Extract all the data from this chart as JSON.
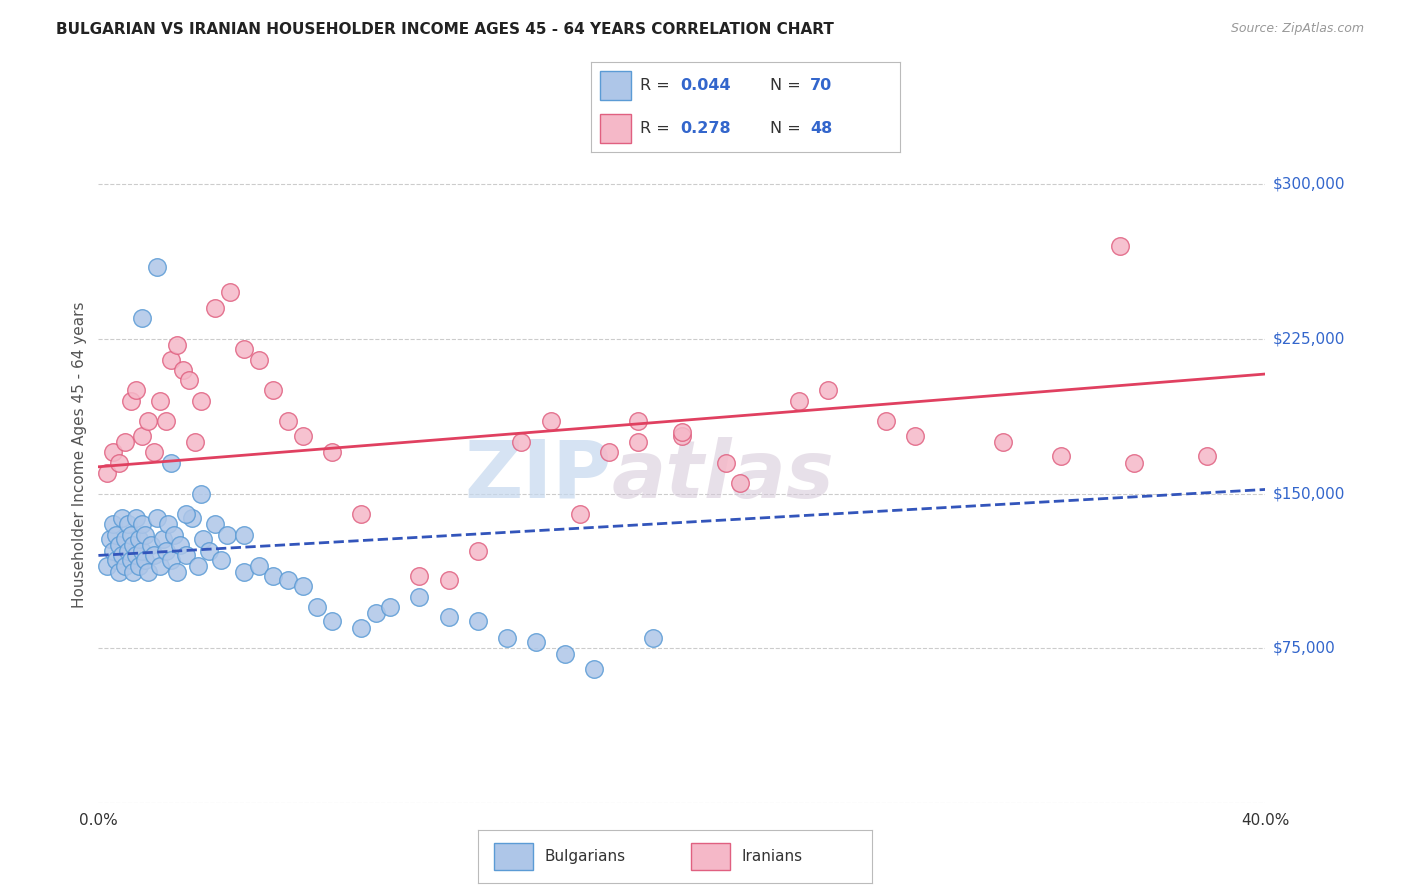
{
  "title": "BULGARIAN VS IRANIAN HOUSEHOLDER INCOME AGES 45 - 64 YEARS CORRELATION CHART",
  "source": "Source: ZipAtlas.com",
  "ylabel": "Householder Income Ages 45 - 64 years",
  "xlim": [
    0.0,
    0.4
  ],
  "ylim": [
    0,
    337500
  ],
  "yticks": [
    0,
    75000,
    150000,
    225000,
    300000
  ],
  "ytick_labels": [
    "",
    "$75,000",
    "$150,000",
    "$225,000",
    "$300,000"
  ],
  "xtick_labels": [
    "0.0%",
    "",
    "",
    "",
    "",
    "",
    "",
    "",
    "40.0%"
  ],
  "bg_color": "#ffffff",
  "grid_color": "#cccccc",
  "bulgarian_color": "#aec6e8",
  "iranian_color": "#f5b8c8",
  "bulgarian_edge_color": "#5b9bd5",
  "iranian_edge_color": "#e06080",
  "blue_line_color": "#3355bb",
  "pink_line_color": "#e04060",
  "legend_R1": "0.044",
  "legend_N1": "70",
  "legend_R2": "0.278",
  "legend_N2": "48",
  "blue_trend_x": [
    0.0,
    0.4
  ],
  "blue_trend_y": [
    120000,
    152000
  ],
  "pink_trend_x": [
    0.0,
    0.4
  ],
  "pink_trend_y": [
    163000,
    208000
  ],
  "bulgarians_scatter_x": [
    0.003,
    0.004,
    0.005,
    0.005,
    0.006,
    0.006,
    0.007,
    0.007,
    0.008,
    0.008,
    0.009,
    0.009,
    0.01,
    0.01,
    0.011,
    0.011,
    0.012,
    0.012,
    0.013,
    0.013,
    0.014,
    0.014,
    0.015,
    0.015,
    0.016,
    0.016,
    0.017,
    0.018,
    0.019,
    0.02,
    0.021,
    0.022,
    0.023,
    0.024,
    0.025,
    0.026,
    0.027,
    0.028,
    0.03,
    0.032,
    0.034,
    0.036,
    0.038,
    0.04,
    0.042,
    0.044,
    0.05,
    0.055,
    0.06,
    0.065,
    0.07,
    0.075,
    0.08,
    0.09,
    0.095,
    0.1,
    0.11,
    0.12,
    0.13,
    0.14,
    0.15,
    0.16,
    0.17,
    0.19,
    0.02,
    0.015,
    0.025,
    0.03,
    0.035,
    0.05
  ],
  "bulgarians_scatter_y": [
    115000,
    128000,
    122000,
    135000,
    118000,
    130000,
    112000,
    125000,
    120000,
    138000,
    115000,
    128000,
    122000,
    135000,
    118000,
    130000,
    112000,
    125000,
    120000,
    138000,
    115000,
    128000,
    122000,
    135000,
    118000,
    130000,
    112000,
    125000,
    120000,
    138000,
    115000,
    128000,
    122000,
    135000,
    118000,
    130000,
    112000,
    125000,
    120000,
    138000,
    115000,
    128000,
    122000,
    135000,
    118000,
    130000,
    112000,
    115000,
    110000,
    108000,
    105000,
    95000,
    88000,
    85000,
    92000,
    95000,
    100000,
    90000,
    88000,
    80000,
    78000,
    72000,
    65000,
    80000,
    260000,
    235000,
    165000,
    140000,
    150000,
    130000
  ],
  "iranians_scatter_x": [
    0.003,
    0.005,
    0.007,
    0.009,
    0.011,
    0.013,
    0.015,
    0.017,
    0.019,
    0.021,
    0.023,
    0.025,
    0.027,
    0.029,
    0.031,
    0.033,
    0.035,
    0.04,
    0.045,
    0.05,
    0.055,
    0.06,
    0.065,
    0.07,
    0.08,
    0.09,
    0.11,
    0.12,
    0.13,
    0.145,
    0.155,
    0.165,
    0.175,
    0.185,
    0.2,
    0.215,
    0.22,
    0.25,
    0.27,
    0.31,
    0.33,
    0.355,
    0.38,
    0.35,
    0.24,
    0.2,
    0.185,
    0.28
  ],
  "iranians_scatter_y": [
    160000,
    170000,
    165000,
    175000,
    195000,
    200000,
    178000,
    185000,
    170000,
    195000,
    185000,
    215000,
    222000,
    210000,
    205000,
    175000,
    195000,
    240000,
    248000,
    220000,
    215000,
    200000,
    185000,
    178000,
    170000,
    140000,
    110000,
    108000,
    122000,
    175000,
    185000,
    140000,
    170000,
    175000,
    178000,
    165000,
    155000,
    200000,
    185000,
    175000,
    168000,
    165000,
    168000,
    270000,
    195000,
    180000,
    185000,
    178000
  ]
}
